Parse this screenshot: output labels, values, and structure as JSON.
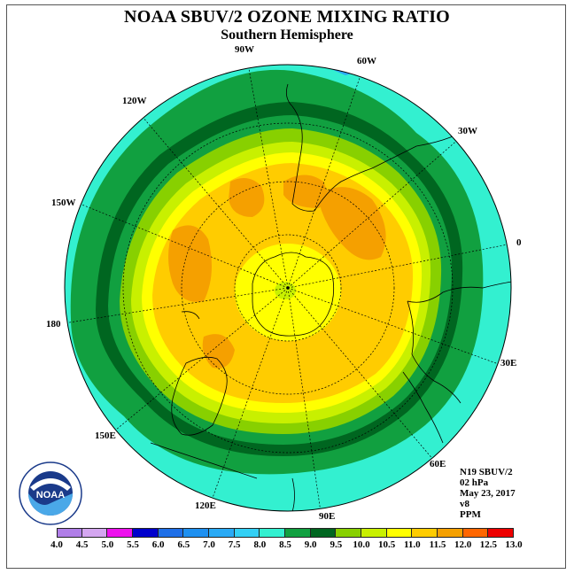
{
  "title": "NOAA SBUV/2 OZONE MIXING RATIO",
  "subtitle": "Southern Hemisphere",
  "longitude_labels": [
    "90W",
    "60W",
    "30W",
    "0",
    "30E",
    "60E",
    "90E",
    "120E",
    "150E",
    "180",
    "150W",
    "120W"
  ],
  "info": {
    "satellite": "N19 SBUV/2",
    "pressure": "02 hPa",
    "date": "May 23, 2017",
    "version": "v8",
    "units": "PPM"
  },
  "colorbar": {
    "labels": [
      "4.0",
      "4.5",
      "5.0",
      "5.5",
      "6.0",
      "6.5",
      "7.0",
      "7.5",
      "8.0",
      "8.5",
      "9.0",
      "9.5",
      "10.0",
      "10.5",
      "11.0",
      "11.5",
      "12.0",
      "12.5",
      "13.0"
    ],
    "colors": [
      "#b07ee8",
      "#d4a6f0",
      "#ee11ee",
      "#0000cc",
      "#1e6fe8",
      "#1e90f0",
      "#2aaaf5",
      "#33d0f5",
      "#33f0d0",
      "#11a040",
      "#006620",
      "#88d000",
      "#c8f000",
      "#ffff00",
      "#ffcc00",
      "#f5a000",
      "#ff6600",
      "#ee0000",
      "#996644"
    ]
  },
  "map_colors": {
    "outer_ring": "#33f0d0",
    "dark_green": "#11a040",
    "darkest_green": "#006620",
    "lime": "#88d000",
    "yellow_green": "#c8f000",
    "yellow": "#ffff00",
    "gold": "#ffcc00",
    "orange": "#f5a000",
    "light_blue": "#2aaaf5"
  },
  "logo": {
    "text": "NOAA"
  }
}
